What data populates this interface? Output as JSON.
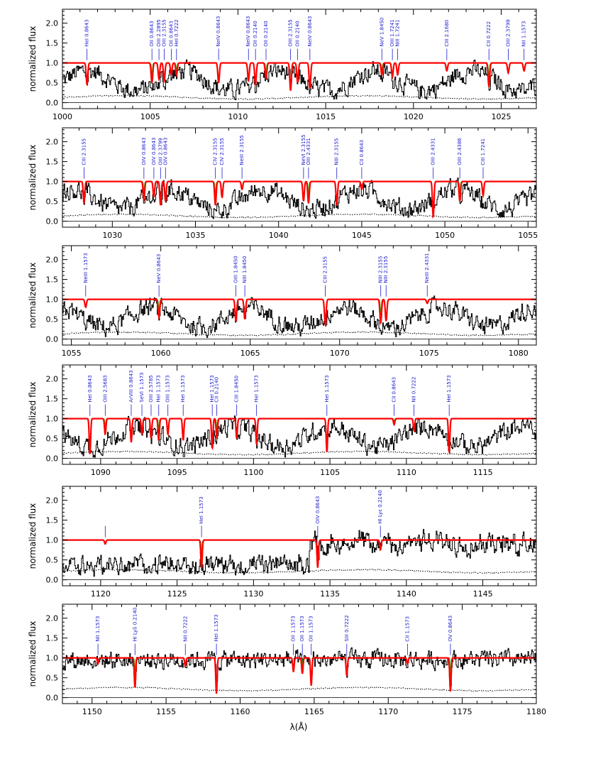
{
  "colors": {
    "spectrum": "#000000",
    "error": "#000000",
    "model": "#ff0000",
    "highlight": "#00cc00",
    "labels": "#1a1acc"
  },
  "chart_data": {
    "type": "line",
    "ylabel": "normalized flux",
    "xlabel": "λ(Å)",
    "panels": [
      {
        "xlim": [
          1000,
          1027
        ],
        "ylim": [
          -0.15,
          2.35
        ],
        "xticks": [
          "1000",
          "1005",
          "1010",
          "1015",
          "1020",
          "1025"
        ],
        "yticks": [
          "0.0",
          "0.5",
          "1.0",
          "1.5",
          "2.0"
        ],
        "lines": [
          {
            "x": 1001.4,
            "label": "HeI  0.8643",
            "depth": 0.55
          },
          {
            "x": 1005.1,
            "label": "OII  0.8643",
            "depth": 0.5
          },
          {
            "x": 1005.5,
            "label": "OIII  2.2895",
            "depth": 0.4
          },
          {
            "x": 1005.8,
            "label": "OIII  2.3155",
            "depth": 0.45
          },
          {
            "x": 1006.2,
            "label": "OII  0.8643",
            "depth": 0.3
          },
          {
            "x": 1006.5,
            "label": "HeI  0.7222",
            "depth": 0.3
          },
          {
            "x": 1008.9,
            "label": "NeIV  0.8643",
            "depth": 0.5
          },
          {
            "x": 1010.6,
            "label": "NeIV  0.8643",
            "depth": 0.45
          },
          {
            "x": 1011.0,
            "label": "OII  0.2140",
            "depth": 0.55
          },
          {
            "x": 1011.6,
            "label": "OII  0.2140",
            "depth": 0.4
          },
          {
            "x": 1013.0,
            "label": "OIII  2.3155",
            "depth": 0.7
          },
          {
            "x": 1013.4,
            "label": "OII  0.2140",
            "depth": 0.5
          },
          {
            "x": 1014.1,
            "label": "NeIV  0.8643",
            "depth": 0.65
          },
          {
            "x": 1018.2,
            "label": "NeV  1.8450",
            "depth": 0.3
          },
          {
            "x": 1018.8,
            "label": "OIII  1.7241",
            "depth": 0.35
          },
          {
            "x": 1019.1,
            "label": "NIII  1.7241",
            "depth": 0.3
          },
          {
            "x": 1021.9,
            "label": "CIII  2.1680",
            "depth": 0.2
          },
          {
            "x": 1024.3,
            "label": "CII  0.7222",
            "depth": 0.6
          },
          {
            "x": 1025.4,
            "label": "OIII  2.3799",
            "depth": 0.25
          },
          {
            "x": 1026.3,
            "label": "NII  1.1573",
            "depth": 0.2
          }
        ]
      },
      {
        "xlim": [
          1027,
          1055.5
        ],
        "ylim": [
          -0.15,
          2.35
        ],
        "xticks": [
          "1030",
          "1035",
          "1040",
          "1045",
          "1050",
          "1055"
        ],
        "yticks": [
          "0.0",
          "0.5",
          "1.0",
          "1.5",
          "2.0"
        ],
        "lines": [
          {
            "x": 1028.3,
            "label": "CIII  2.3155",
            "depth": 0.55
          },
          {
            "x": 1031.9,
            "label": "OIV  0.8643",
            "depth": 0.45
          },
          {
            "x": 1032.5,
            "label": "OIV  0.8643",
            "depth": 0.4
          },
          {
            "x": 1032.9,
            "label": "OIII  2.3799",
            "depth": 0.6
          },
          {
            "x": 1033.2,
            "label": "OIV  0.8643",
            "depth": 0.5
          },
          {
            "x": 1036.2,
            "label": "CIV  2.3155",
            "depth": 0.6
          },
          {
            "x": 1036.6,
            "label": "CIV  2.3155",
            "depth": 0.4
          },
          {
            "x": 1037.8,
            "label": "NeIII  2.3155",
            "depth": 0.2
          },
          {
            "x": 1041.5,
            "label": "NeVI  2.3155",
            "depth": 0.5
          },
          {
            "x": 1041.8,
            "label": "OIII  2.4331",
            "depth": 0.55
          },
          {
            "x": 1043.5,
            "label": "NIII  2.3155",
            "depth": 0.6
          },
          {
            "x": 1045.0,
            "label": "CII  0.8643",
            "depth": 0.2
          },
          {
            "x": 1049.3,
            "label": "OIII  2.4331",
            "depth": 0.9
          },
          {
            "x": 1050.9,
            "label": "OIII  2.4386",
            "depth": 0.5
          },
          {
            "x": 1052.3,
            "label": "CIII  1.7241",
            "depth": 0.35
          }
        ]
      },
      {
        "xlim": [
          1054.5,
          1081
        ],
        "ylim": [
          -0.15,
          2.35
        ],
        "xticks": [
          "1055",
          "1060",
          "1065",
          "1070",
          "1075",
          "1080"
        ],
        "yticks": [
          "0.0",
          "0.5",
          "1.0",
          "1.5",
          "2.0"
        ],
        "lines": [
          {
            "x": 1055.8,
            "label": "NeIII  1.1573",
            "depth": 0.2
          },
          {
            "x": 1059.9,
            "label": "NeV  0.8643",
            "depth": 0.45
          },
          {
            "x": 1064.2,
            "label": "OIII  1.8450",
            "depth": 0.55
          },
          {
            "x": 1064.7,
            "label": "NIII  1.8450",
            "depth": 0.5
          },
          {
            "x": 1069.2,
            "label": "CIII  2.3155",
            "depth": 0.65
          },
          {
            "x": 1072.3,
            "label": "NIII  2.3155",
            "depth": 0.6
          },
          {
            "x": 1072.6,
            "label": "NIII  2.3155",
            "depth": 0.55
          },
          {
            "x": 1074.9,
            "label": "NeIII  2.4331",
            "depth": 0.1
          }
        ]
      },
      {
        "xlim": [
          1087.5,
          1118.5
        ],
        "ylim": [
          -0.15,
          2.35
        ],
        "xticks": [
          "1090",
          "1095",
          "1100",
          "1105",
          "1110",
          "1115"
        ],
        "yticks": [
          "0.0",
          "0.5",
          "1.0",
          "1.5",
          "2.0"
        ],
        "lines": [
          {
            "x": 1089.3,
            "label": "HeI  0.8643",
            "depth": 0.9
          },
          {
            "x": 1090.3,
            "label": "OIII  2.5683",
            "depth": 0.4
          },
          {
            "x": 1092.0,
            "label": "ArVIII  0.8643",
            "depth": 0.6
          },
          {
            "x": 1092.7,
            "label": "SeVI  1.1573",
            "depth": 0.4
          },
          {
            "x": 1093.3,
            "label": "OIII  2.5785",
            "depth": 0.5
          },
          {
            "x": 1093.8,
            "label": "HeI  1.1573",
            "depth": 0.55
          },
          {
            "x": 1094.4,
            "label": "OIII  1.1573",
            "depth": 0.4
          },
          {
            "x": 1095.4,
            "label": "HeI  1.1573",
            "depth": 0.55
          },
          {
            "x": 1097.3,
            "label": "HeI  1.1573",
            "depth": 0.75
          },
          {
            "x": 1097.6,
            "label": "CII  0.2140",
            "depth": 0.5
          },
          {
            "x": 1098.9,
            "label": "CIII  1.8450",
            "depth": 0.5
          },
          {
            "x": 1100.2,
            "label": "HeI  1.1573",
            "depth": 0.65
          },
          {
            "x": 1104.8,
            "label": "HeI  1.1573",
            "depth": 0.85
          },
          {
            "x": 1109.2,
            "label": "CII  0.8643",
            "depth": 0.15
          },
          {
            "x": 1110.5,
            "label": "NII  0.7222",
            "depth": 0.3
          },
          {
            "x": 1112.8,
            "label": "HeI  1.1573",
            "depth": 0.85
          }
        ]
      },
      {
        "xlim": [
          1117.5,
          1148.5
        ],
        "ylim": [
          -0.15,
          2.35
        ],
        "xticks": [
          "1120",
          "1125",
          "1130",
          "1135",
          "1140",
          "1145"
        ],
        "yticks": [
          "0.0",
          "0.5",
          "1.0",
          "1.5",
          "2.0"
        ],
        "lines": [
          {
            "x": 1120.3,
            "label": "",
            "depth": 0.1
          },
          {
            "x": 1126.6,
            "label": "HeI  1.1573",
            "depth": 0.7
          },
          {
            "x": 1134.2,
            "label": "OIV  0.8643",
            "depth": 0.7
          },
          {
            "x": 1138.3,
            "label": "HI  Lyε  0.2140",
            "depth": 0.25
          }
        ]
      },
      {
        "xlim": [
          1148,
          1180
        ],
        "ylim": [
          -0.15,
          2.35
        ],
        "xticks": [
          "1150",
          "1155",
          "1160",
          "1165",
          "1170",
          "1175",
          "1180"
        ],
        "yticks": [
          "0.0",
          "0.5",
          "1.0",
          "1.5",
          "2.0"
        ],
        "lines": [
          {
            "x": 1150.4,
            "label": "NII  1.1573",
            "depth": 0.15
          },
          {
            "x": 1152.9,
            "label": "HI  Lyδ  0.2140",
            "depth": 0.75
          },
          {
            "x": 1156.3,
            "label": "NII  0.7222",
            "depth": 0.2
          },
          {
            "x": 1158.4,
            "label": "HeI  1.1573",
            "depth": 0.9
          },
          {
            "x": 1163.6,
            "label": "OII  1.1573",
            "depth": 0.35
          },
          {
            "x": 1164.2,
            "label": "OII  1.1573",
            "depth": 0.4
          },
          {
            "x": 1164.8,
            "label": "OII  1.1573",
            "depth": 0.7
          },
          {
            "x": 1167.2,
            "label": "SIII  0.7222",
            "depth": 0.45
          },
          {
            "x": 1171.3,
            "label": "CII  1.1573",
            "depth": 0.15
          },
          {
            "x": 1174.2,
            "label": "OV  0.8643",
            "depth": 0.85
          }
        ]
      }
    ]
  }
}
